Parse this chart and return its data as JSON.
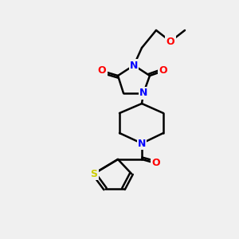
{
  "bg_color": "#f0f0f0",
  "atom_colors": {
    "C": "#000000",
    "N": "#0000ff",
    "O": "#ff0000",
    "S": "#cccc00"
  },
  "bond_color": "#000000",
  "figsize": [
    3.0,
    3.0
  ],
  "dpi": 100
}
